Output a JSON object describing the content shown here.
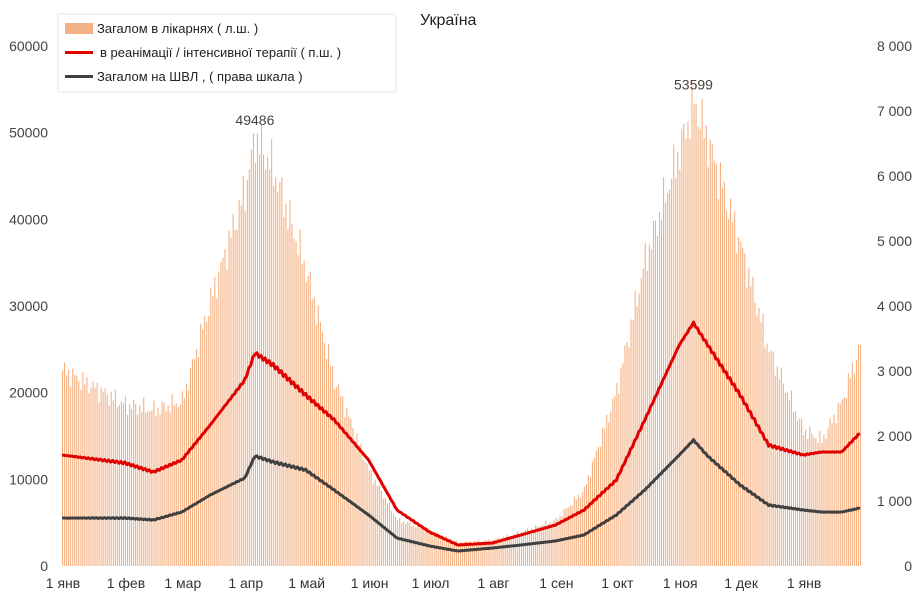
{
  "chart_data": {
    "type": "bar+line",
    "title": "Україна",
    "legend": [
      {
        "label": "Загалом в лікарнях ( л.ш. )",
        "color": "#f4b183",
        "kind": "bar"
      },
      {
        "label": "в реанімації / інтенсивної терапії ( п.ш. )",
        "color": "#e00000",
        "kind": "line"
      },
      {
        "label": "Загалом на ШВЛ , ( права шкала )",
        "color": "#404040",
        "kind": "line"
      }
    ],
    "legend_position": "top-left",
    "x_day_offsets": [
      0,
      31,
      45,
      59,
      73,
      90,
      95,
      104,
      120,
      134,
      151,
      165,
      181,
      195,
      212,
      226,
      243,
      257,
      273,
      287,
      304,
      311,
      318,
      334,
      348,
      365,
      374,
      384,
      393
    ],
    "total_days": 394,
    "x_tick_labels": [
      "1 янв",
      "1 фев",
      "1 мар",
      "1 апр",
      "1 май",
      "1 июн",
      "1 июл",
      "1 авг",
      "1 сен",
      "1 окт",
      "1 ноя",
      "1 дек",
      "1 янв"
    ],
    "x_tick_days": [
      0,
      31,
      59,
      90,
      120,
      151,
      181,
      212,
      243,
      273,
      304,
      334,
      365
    ],
    "left_axis": {
      "ylim": [
        0,
        60000
      ],
      "ticks": [
        "0",
        "10000",
        "20000",
        "30000",
        "40000",
        "50000",
        "60000"
      ]
    },
    "right_axis": {
      "ylim": [
        0,
        8000
      ],
      "ticks": [
        "0",
        "1 000",
        "2 000",
        "3 000",
        "4 000",
        "5 000",
        "6 000",
        "7 000",
        "8 000"
      ]
    },
    "series": [
      {
        "name": "Загалом в лікарнях ( л.ш. )",
        "axis": "left",
        "values": [
          22600,
          18600,
          18000,
          19000,
          30700,
          43400,
          49486,
          45700,
          34200,
          21500,
          11000,
          5300,
          4100,
          2700,
          3000,
          3900,
          5300,
          8800,
          20300,
          35300,
          48000,
          53599,
          49000,
          37000,
          24900,
          15700,
          14500,
          19000,
          25500
        ]
      },
      {
        "name": "в реанімації / інтенсивної терапії ( п.ш. )",
        "axis": "right",
        "values": [
          1708,
          1585,
          1446,
          1630,
          2170,
          2860,
          3277,
          3090,
          2630,
          2250,
          1630,
          860,
          523,
          323,
          354,
          477,
          630,
          860,
          1323,
          2246,
          3400,
          3740,
          3400,
          2630,
          1860,
          1708,
          1754,
          1754,
          2046
        ]
      },
      {
        "name": "Загалом на ШВЛ , ( права шкала )",
        "axis": "right",
        "values": [
          738,
          738,
          708,
          830,
          1092,
          1354,
          1692,
          1600,
          1477,
          1170,
          785,
          430,
          308,
          230,
          277,
          323,
          385,
          477,
          785,
          1170,
          1708,
          1938,
          1692,
          1246,
          938,
          862,
          830,
          830,
          892
        ]
      }
    ],
    "annotations": [
      {
        "text": "49486",
        "day": 95
      },
      {
        "text": "53599",
        "day": 311
      }
    ],
    "grid": false
  }
}
